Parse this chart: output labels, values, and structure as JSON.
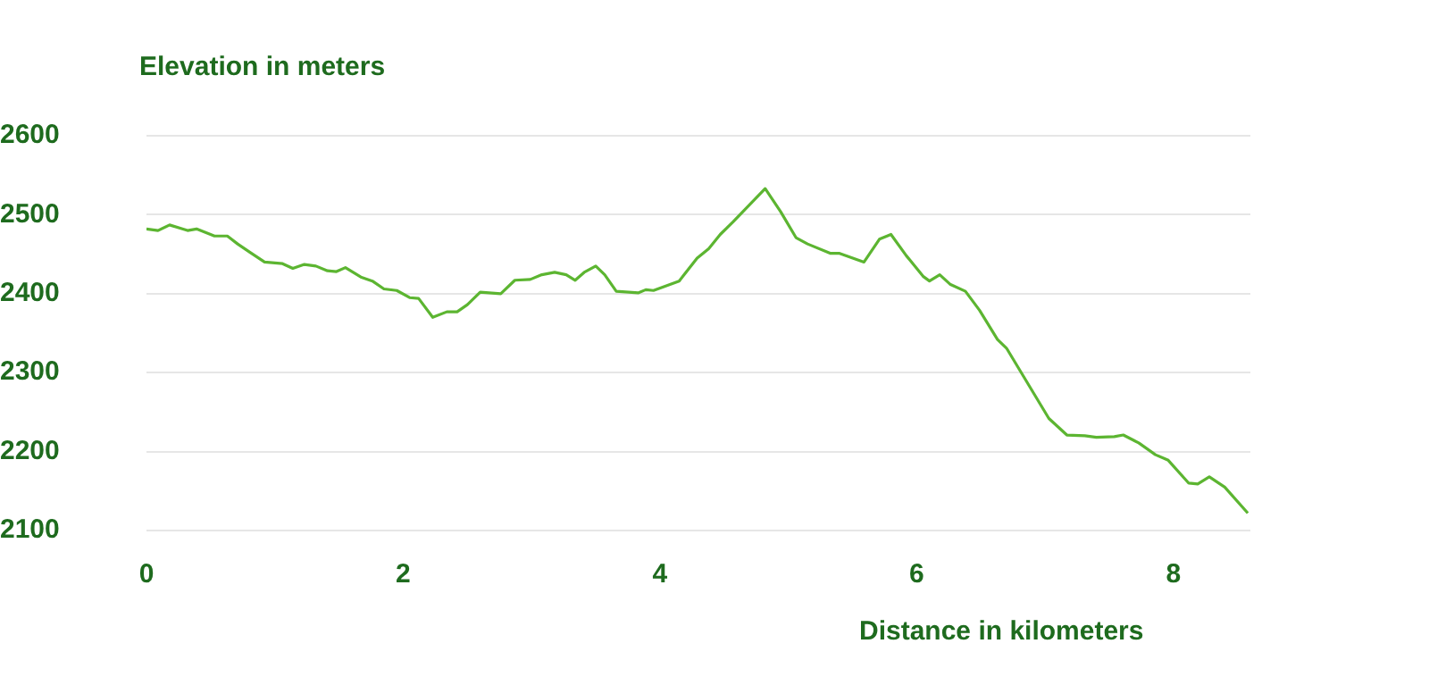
{
  "chart_data": {
    "type": "line",
    "xlabel": "Distance in kilometers",
    "ylabel": "Elevation in meters",
    "x": [
      0,
      0.09,
      0.18,
      0.32,
      0.39,
      0.53,
      0.63,
      0.71,
      0.81,
      0.92,
      1.06,
      1.14,
      1.23,
      1.32,
      1.41,
      1.48,
      1.55,
      1.67,
      1.76,
      1.85,
      1.95,
      2.05,
      2.12,
      2.23,
      2.34,
      2.42,
      2.5,
      2.6,
      2.76,
      2.87,
      2.99,
      3.08,
      3.18,
      3.27,
      3.34,
      3.41,
      3.5,
      3.57,
      3.66,
      3.83,
      3.89,
      3.95,
      4.15,
      4.29,
      4.38,
      4.47,
      4.57,
      4.82,
      4.94,
      5.06,
      5.15,
      5.33,
      5.4,
      5.59,
      5.71,
      5.8,
      5.92,
      6.05,
      6.1,
      6.18,
      6.26,
      6.38,
      6.49,
      6.63,
      6.7,
      7.03,
      7.17,
      7.31,
      7.4,
      7.54,
      7.61,
      7.73,
      7.86,
      7.96,
      8.12,
      8.19,
      8.28,
      8.4,
      8.58
    ],
    "series": [
      {
        "color": "#5cb531",
        "values": [
          2482,
          2480,
          2487,
          2480,
          2482,
          2473,
          2473,
          2463,
          2452,
          2440,
          2438,
          2432,
          2437,
          2435,
          2429,
          2428,
          2433,
          2421,
          2416,
          2406,
          2404,
          2395,
          2394,
          2370,
          2377,
          2377,
          2386,
          2402,
          2400,
          2417,
          2418,
          2424,
          2427,
          2424,
          2417,
          2427,
          2435,
          2424,
          2403,
          2401,
          2405,
          2404,
          2416,
          2445,
          2457,
          2475,
          2491,
          2533,
          2504,
          2471,
          2463,
          2451,
          2451,
          2440,
          2469,
          2475,
          2448,
          2422,
          2416,
          2424,
          2412,
          2403,
          2379,
          2342,
          2331,
          2242,
          2221,
          2220,
          2218,
          2219,
          2221,
          2211,
          2196,
          2189,
          2160,
          2159,
          2168,
          2155,
          2122
        ]
      }
    ],
    "xlim": [
      0,
      8.6
    ],
    "ylim": [
      2100,
      2600
    ],
    "xticks": [
      0,
      2,
      4,
      6,
      8
    ],
    "yticks": [
      2100,
      2200,
      2300,
      2400,
      2500,
      2600
    ],
    "grid": "y"
  }
}
